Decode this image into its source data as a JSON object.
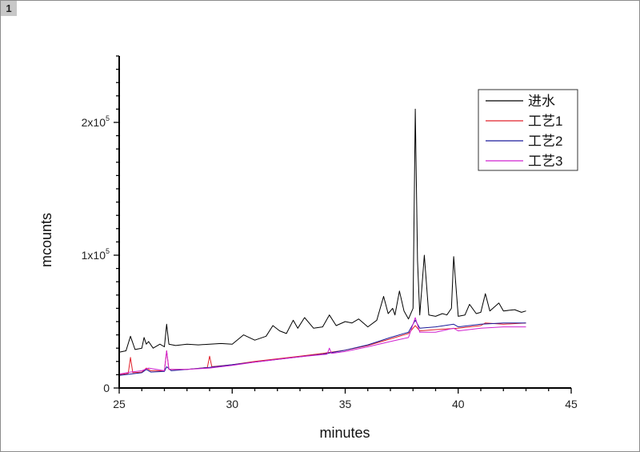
{
  "window": {
    "page_tag": "1"
  },
  "chart_data": {
    "type": "line",
    "title": "",
    "xlabel": "minutes",
    "ylabel": "mcounts",
    "xlim": [
      25,
      45
    ],
    "ylim": [
      0,
      250000
    ],
    "x_ticks": [
      25,
      30,
      35,
      40,
      45
    ],
    "x_tick_labels": [
      "25",
      "30",
      "35",
      "40",
      "45"
    ],
    "y_ticks": [
      0,
      100000,
      200000
    ],
    "y_tick_labels": [
      {
        "base": "0",
        "exp": ""
      },
      {
        "base": "1x10",
        "exp": "5"
      },
      {
        "base": "2x10",
        "exp": "5"
      }
    ],
    "grid": false,
    "legend_position": "top-right",
    "series": [
      {
        "name": "进水",
        "color": "#000000",
        "points": [
          [
            25,
            27000
          ],
          [
            25.3,
            28000
          ],
          [
            25.5,
            39000
          ],
          [
            25.7,
            29000
          ],
          [
            26,
            30000
          ],
          [
            26.1,
            38000
          ],
          [
            26.2,
            33000
          ],
          [
            26.3,
            35000
          ],
          [
            26.5,
            30000
          ],
          [
            26.8,
            33000
          ],
          [
            27,
            31000
          ],
          [
            27.1,
            48000
          ],
          [
            27.2,
            33000
          ],
          [
            27.5,
            32000
          ],
          [
            28,
            33000
          ],
          [
            28.5,
            32500
          ],
          [
            29,
            33000
          ],
          [
            29.5,
            33500
          ],
          [
            30,
            33000
          ],
          [
            30.5,
            40000
          ],
          [
            31,
            36000
          ],
          [
            31.5,
            39000
          ],
          [
            31.8,
            47000
          ],
          [
            32.1,
            43000
          ],
          [
            32.4,
            41000
          ],
          [
            32.7,
            51000
          ],
          [
            32.9,
            45000
          ],
          [
            33.2,
            53000
          ],
          [
            33.6,
            45000
          ],
          [
            34,
            46000
          ],
          [
            34.3,
            55000
          ],
          [
            34.6,
            47000
          ],
          [
            35,
            50000
          ],
          [
            35.3,
            49000
          ],
          [
            35.6,
            52000
          ],
          [
            36,
            46000
          ],
          [
            36.4,
            51000
          ],
          [
            36.7,
            69000
          ],
          [
            36.9,
            56000
          ],
          [
            37.1,
            60000
          ],
          [
            37.2,
            55000
          ],
          [
            37.4,
            73000
          ],
          [
            37.6,
            58000
          ],
          [
            37.8,
            52000
          ],
          [
            38.0,
            60000
          ],
          [
            38.1,
            210000
          ],
          [
            38.2,
            96000
          ],
          [
            38.3,
            55000
          ],
          [
            38.5,
            100000
          ],
          [
            38.7,
            55000
          ],
          [
            39.0,
            54000
          ],
          [
            39.3,
            56000
          ],
          [
            39.5,
            55000
          ],
          [
            39.7,
            60000
          ],
          [
            39.8,
            99000
          ],
          [
            40.0,
            54000
          ],
          [
            40.3,
            55000
          ],
          [
            40.5,
            63000
          ],
          [
            40.8,
            56000
          ],
          [
            41.0,
            57000
          ],
          [
            41.2,
            71000
          ],
          [
            41.4,
            58000
          ],
          [
            41.8,
            64000
          ],
          [
            42.0,
            58000
          ],
          [
            42.5,
            59000
          ],
          [
            42.8,
            57000
          ],
          [
            43,
            58000
          ]
        ]
      },
      {
        "name": "工艺1",
        "color": "#e0202a",
        "points": [
          [
            25,
            10000
          ],
          [
            25.4,
            11000
          ],
          [
            25.5,
            23000
          ],
          [
            25.6,
            11500
          ],
          [
            26,
            12000
          ],
          [
            26.2,
            15000
          ],
          [
            26.4,
            13000
          ],
          [
            27,
            13000
          ],
          [
            27.1,
            28000
          ],
          [
            27.2,
            14000
          ],
          [
            28,
            14000
          ],
          [
            28.9,
            15500
          ],
          [
            29,
            24000
          ],
          [
            29.1,
            16000
          ],
          [
            30,
            17500
          ],
          [
            31,
            20000
          ],
          [
            32,
            22000
          ],
          [
            33,
            24000
          ],
          [
            34,
            26000
          ],
          [
            35,
            28500
          ],
          [
            36,
            32000
          ],
          [
            37,
            37000
          ],
          [
            37.8,
            41000
          ],
          [
            38.1,
            47000
          ],
          [
            38.3,
            43000
          ],
          [
            39,
            44000
          ],
          [
            40,
            45000
          ],
          [
            41,
            47000
          ],
          [
            41.2,
            49000
          ],
          [
            42,
            48000
          ],
          [
            43,
            49000
          ]
        ]
      },
      {
        "name": "工艺2",
        "color": "#1a1a9a",
        "points": [
          [
            25,
            9500
          ],
          [
            26,
            11500
          ],
          [
            26.2,
            14000
          ],
          [
            26.4,
            12000
          ],
          [
            27,
            12500
          ],
          [
            27.1,
            16000
          ],
          [
            27.3,
            13000
          ],
          [
            28,
            14000
          ],
          [
            29,
            15500
          ],
          [
            30,
            17500
          ],
          [
            31,
            19500
          ],
          [
            32,
            21500
          ],
          [
            33,
            23500
          ],
          [
            34,
            25500
          ],
          [
            35,
            28500
          ],
          [
            36,
            32500
          ],
          [
            37,
            38000
          ],
          [
            37.8,
            42000
          ],
          [
            38.1,
            51000
          ],
          [
            38.3,
            45000
          ],
          [
            39,
            46000
          ],
          [
            39.8,
            48000
          ],
          [
            40,
            46000
          ],
          [
            41,
            48000
          ],
          [
            42,
            49000
          ],
          [
            43,
            49000
          ]
        ]
      },
      {
        "name": "工艺3",
        "color": "#d020d0",
        "points": [
          [
            25,
            10500
          ],
          [
            25.5,
            12000
          ],
          [
            26,
            13000
          ],
          [
            26.3,
            15000
          ],
          [
            27,
            13000
          ],
          [
            27.1,
            28000
          ],
          [
            27.2,
            14000
          ],
          [
            28,
            14000
          ],
          [
            29,
            15000
          ],
          [
            30,
            17000
          ],
          [
            31,
            19500
          ],
          [
            32,
            21500
          ],
          [
            33,
            23500
          ],
          [
            34.2,
            25500
          ],
          [
            34.3,
            30000
          ],
          [
            34.4,
            26000
          ],
          [
            35,
            27500
          ],
          [
            36,
            31000
          ],
          [
            37,
            35000
          ],
          [
            37.8,
            38000
          ],
          [
            38.1,
            53000
          ],
          [
            38.3,
            42000
          ],
          [
            39,
            42000
          ],
          [
            39.8,
            45000
          ],
          [
            40,
            43000
          ],
          [
            41,
            45000
          ],
          [
            42,
            46000
          ],
          [
            43,
            46000
          ]
        ]
      }
    ]
  }
}
